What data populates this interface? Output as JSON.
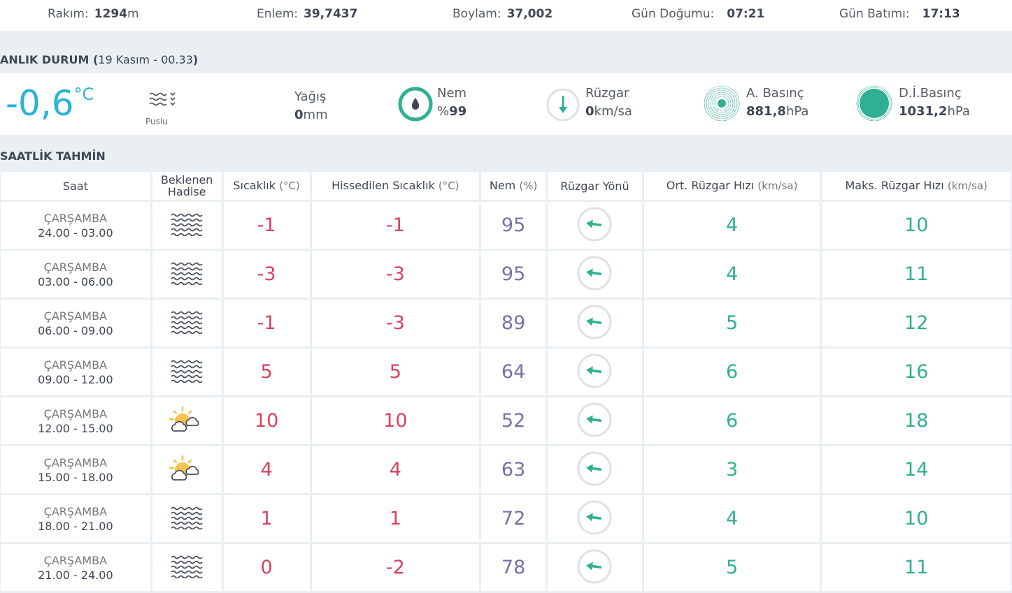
{
  "top": {
    "altitude_label": "Rakım:",
    "altitude_value": "1294",
    "altitude_unit": "m",
    "lat_label": "Enlem:",
    "lat_value": "39,7437",
    "lon_label": "Boylam:",
    "lon_value": "37,002",
    "sunrise_label": "Gün Doğumu:",
    "sunrise_value": "07:21",
    "sunset_label": "Gün Batımı:",
    "sunset_value": "17:13"
  },
  "current": {
    "title": "ANLIK DURUM",
    "date": "19 Kasım - 00.33",
    "temp": "-0,6",
    "temp_unit": "°C",
    "condition": "Puslu",
    "condition_icon": "fog-icon",
    "rain_label": "Yağış",
    "rain_value": "0",
    "rain_unit": "mm",
    "humidity_label": "Nem",
    "humidity_prefix": "%",
    "humidity_value": "99",
    "wind_label": "Rüzgar",
    "wind_value": "0",
    "wind_unit": "km/sa",
    "pressure_label": "A. Basınç",
    "pressure_value": "881,8",
    "pressure_unit": "hPa",
    "sea_pressure_label": "D.İ.Basınç",
    "sea_pressure_value": "1031,2",
    "sea_pressure_unit": "hPa"
  },
  "colors": {
    "accent": "#2fb092",
    "temp_blue": "#29b4d6",
    "temp_red": "#d9415f",
    "humidity": "#7a6fa8"
  },
  "hourly": {
    "title": "SAATLİK TAHMİN",
    "headers": [
      {
        "main": "Saat",
        "unit": ""
      },
      {
        "main": "Beklenen Hadise",
        "unit": ""
      },
      {
        "main": "Sıcaklık",
        "unit": "(°C)"
      },
      {
        "main": "Hissedilen Sıcaklık",
        "unit": "(°C)"
      },
      {
        "main": "Nem",
        "unit": "(%)"
      },
      {
        "main": "Rüzgar Yönü",
        "unit": ""
      },
      {
        "main": "Ort. Rüzgar Hızı",
        "unit": "(km/sa)"
      },
      {
        "main": "Maks. Rüzgar Hızı",
        "unit": "(km/sa)"
      }
    ],
    "rows": [
      {
        "day": "ÇARŞAMBA",
        "time": "24.00 - 03.00",
        "icon": "fog",
        "temp": "-1",
        "feels": "-1",
        "hum": "95",
        "avg": "4",
        "max": "10"
      },
      {
        "day": "ÇARŞAMBA",
        "time": "03.00 - 06.00",
        "icon": "fog",
        "temp": "-3",
        "feels": "-3",
        "hum": "95",
        "avg": "4",
        "max": "11"
      },
      {
        "day": "ÇARŞAMBA",
        "time": "06.00 - 09.00",
        "icon": "fog",
        "temp": "-1",
        "feels": "-3",
        "hum": "89",
        "avg": "5",
        "max": "12"
      },
      {
        "day": "ÇARŞAMBA",
        "time": "09.00 - 12.00",
        "icon": "fog",
        "temp": "5",
        "feels": "5",
        "hum": "64",
        "avg": "6",
        "max": "16"
      },
      {
        "day": "ÇARŞAMBA",
        "time": "12.00 - 15.00",
        "icon": "partly-cloudy",
        "temp": "10",
        "feels": "10",
        "hum": "52",
        "avg": "6",
        "max": "18"
      },
      {
        "day": "ÇARŞAMBA",
        "time": "15.00 - 18.00",
        "icon": "partly-cloudy",
        "temp": "4",
        "feels": "4",
        "hum": "63",
        "avg": "3",
        "max": "14"
      },
      {
        "day": "ÇARŞAMBA",
        "time": "18.00 - 21.00",
        "icon": "fog",
        "temp": "1",
        "feels": "1",
        "hum": "72",
        "avg": "4",
        "max": "10"
      },
      {
        "day": "ÇARŞAMBA",
        "time": "21.00 - 24.00",
        "icon": "fog",
        "temp": "0",
        "feels": "-2",
        "hum": "78",
        "avg": "5",
        "max": "11"
      }
    ]
  }
}
